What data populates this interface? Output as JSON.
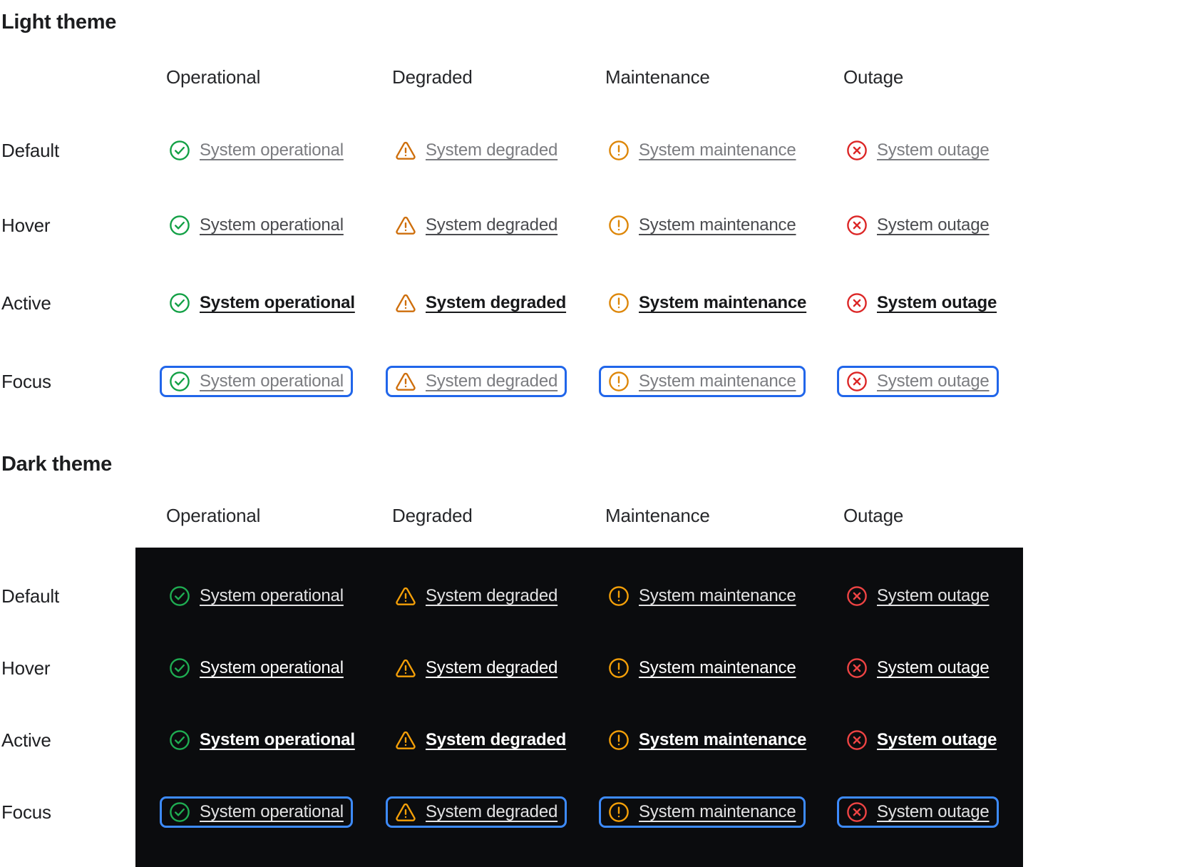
{
  "sections": {
    "light": {
      "title": "Light theme",
      "columns": [
        "Operational",
        "Degraded",
        "Maintenance",
        "Outage"
      ]
    },
    "dark": {
      "title": "Dark theme",
      "columns": [
        "Operational",
        "Degraded",
        "Maintenance",
        "Outage"
      ]
    }
  },
  "states": [
    {
      "name": "default",
      "label": "Default"
    },
    {
      "name": "hover",
      "label": "Hover"
    },
    {
      "name": "active",
      "label": "Active"
    },
    {
      "name": "focus",
      "label": "Focus"
    }
  ],
  "statuses": [
    {
      "name": "operational",
      "icon": "check-circle-icon",
      "label": "System operational",
      "light_color": "#12A045",
      "dark_color": "#1FAD52"
    },
    {
      "name": "degraded",
      "icon": "warning-triangle-icon",
      "label": "System degraded",
      "light_color": "#CE6E0B",
      "dark_color": "#F5A008"
    },
    {
      "name": "maintenance",
      "icon": "alert-circle-icon",
      "label": "System maintenance",
      "light_color": "#DD8607",
      "dark_color": "#F5A008"
    },
    {
      "name": "outage",
      "icon": "x-circle-icon",
      "label": "System outage",
      "light_color": "#DC2626",
      "dark_color": "#EF4444"
    }
  ],
  "colors": {
    "page_bg": "#FFFFFF",
    "dark_panel_bg": "#0B0C0E",
    "focus_ring_light": "#2166EA",
    "focus_ring_dark": "#3D8BFD",
    "link_colors": {
      "light": {
        "default": "#7B7C80",
        "hover": "#4A4B4F",
        "active": "#17181A",
        "focus": "#7B7C80"
      },
      "dark": {
        "default": "#E3E3E4",
        "hover": "#FFFFFF",
        "active": "#FFFFFF",
        "focus": "#E3E3E4"
      }
    }
  }
}
